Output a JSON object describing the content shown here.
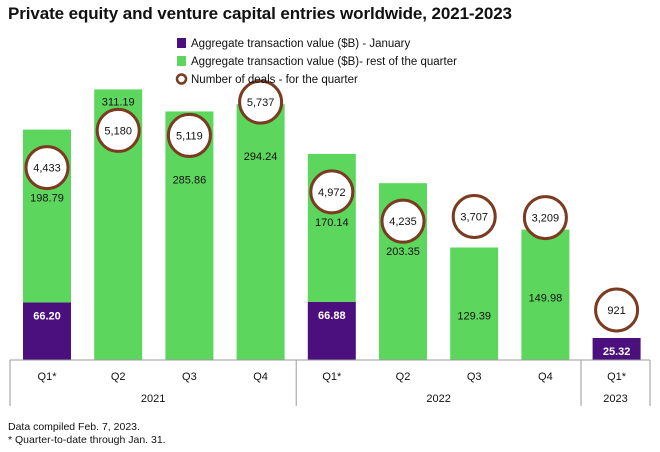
{
  "title": "Private equity and venture capital entries worldwide, 2021-2023",
  "notes": [
    "Data compiled Feb. 7, 2023.",
    "* Quarter-to-date through Jan. 31."
  ],
  "colors": {
    "january": "#4b0f7e",
    "rest_of_quarter": "#5dd65d",
    "deals_circle_stroke": "#7a3b20",
    "axis": "#9a9a9a",
    "background": "#ffffff"
  },
  "chart_data": {
    "type": "bar",
    "stacked": true,
    "categories": [
      "Q1*",
      "Q2",
      "Q3",
      "Q4",
      "Q1*",
      "Q2",
      "Q3",
      "Q4",
      "Q1*"
    ],
    "groups": [
      {
        "label": "2021",
        "count": 4
      },
      {
        "label": "2022",
        "count": 4
      },
      {
        "label": "2023",
        "count": 1
      }
    ],
    "series": [
      {
        "name": "Aggregate transaction value ($B) - January",
        "values": [
          66.2,
          null,
          null,
          null,
          66.88,
          null,
          null,
          null,
          25.32
        ]
      },
      {
        "name": "Aggregate transaction value ($B)- rest of the quarter",
        "values": [
          198.79,
          311.19,
          285.86,
          294.24,
          170.14,
          203.35,
          129.39,
          149.98,
          null
        ]
      }
    ],
    "deals": {
      "name": "Number of deals - for the quarter",
      "values": [
        4433,
        5180,
        5119,
        5737,
        4972,
        4235,
        3707,
        3209,
        921
      ],
      "labels": [
        "4,433",
        "5,180",
        "5,119",
        "5,737",
        "4,972",
        "4,235",
        "3,707",
        "3,209",
        "921"
      ]
    },
    "value_labels": {
      "january": [
        "66.20",
        "",
        "",
        "",
        "66.88",
        "",
        "",
        "",
        "25.32"
      ],
      "rest": [
        "198.79",
        "311.19",
        "285.86",
        "294.24",
        "170.14",
        "203.35",
        "129.39",
        "149.98",
        ""
      ]
    },
    "ylim": [
      0,
      345
    ],
    "legend_position": "top",
    "grid": false
  }
}
